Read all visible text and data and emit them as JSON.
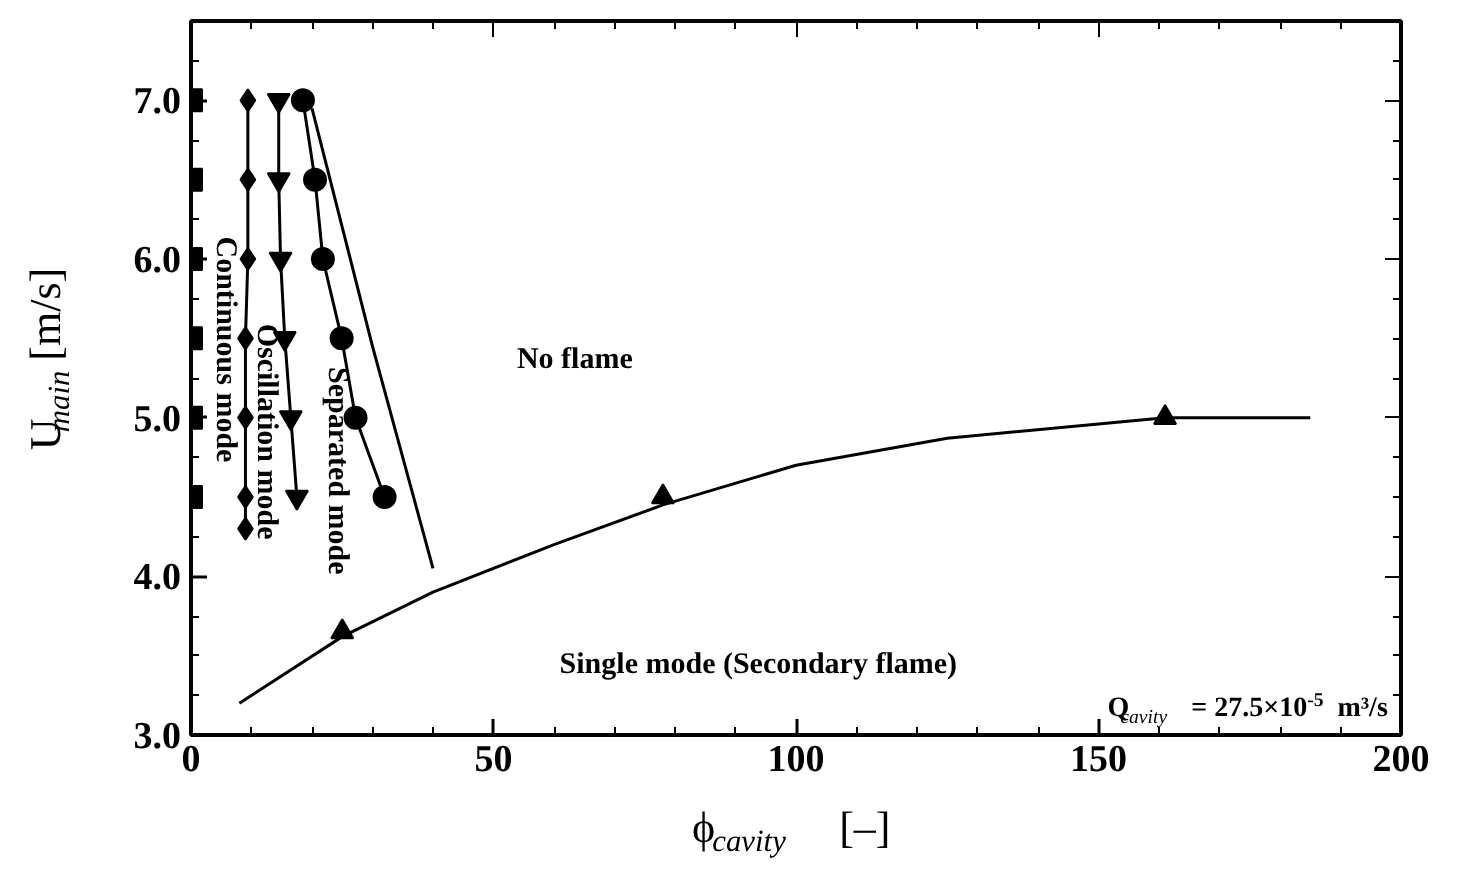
{
  "chart_data": {
    "type": "line",
    "xlabel": "ϕ$_{cavity}$  [–]",
    "ylabel": "U$_{main}$ [m/s]",
    "xlim": [
      0,
      200
    ],
    "ylim": [
      3.0,
      7.5
    ],
    "xticks": [
      0,
      50,
      100,
      150,
      200
    ],
    "yticks": [
      {
        "value": 3.0,
        "label": "3.0"
      },
      {
        "value": 4.0,
        "label": "4.0"
      },
      {
        "value": 5.0,
        "label": "5.0"
      },
      {
        "value": 6.0,
        "label": "6.0"
      },
      {
        "value": 7.0,
        "label": "7.0"
      }
    ],
    "grid": false,
    "series": [
      {
        "type": "scatter",
        "marker": "square",
        "color": "#000000",
        "x": [
          0,
          0,
          0,
          0,
          0,
          0
        ],
        "values": [
          4.5,
          5.0,
          5.5,
          6.0,
          6.5,
          7.0
        ]
      },
      {
        "marker": "diamond",
        "color": "#000000",
        "x": [
          9.0,
          9.0,
          9.0,
          9.0,
          9.4,
          9.4,
          9.4
        ],
        "values": [
          4.3,
          4.5,
          5.0,
          5.5,
          6.0,
          6.5,
          7.0
        ]
      },
      {
        "marker": "triangle_down",
        "color": "#000000",
        "x": [
          17.5,
          16.5,
          15.5,
          14.8,
          14.5,
          14.5
        ],
        "values": [
          4.5,
          5.0,
          5.5,
          6.0,
          6.5,
          7.0
        ]
      },
      {
        "marker": "circle",
        "color": "#000000",
        "x": [
          32.0,
          27.2,
          24.9,
          21.8,
          20.5,
          18.5
        ],
        "values": [
          4.5,
          5.0,
          5.5,
          6.0,
          6.5,
          7.0
        ]
      },
      {
        "marker": "none",
        "color": "#000000",
        "x": [
          20,
          25,
          30,
          35,
          40
        ],
        "values": [
          6.95,
          6.2,
          5.45,
          4.75,
          4.05
        ]
      },
      {
        "marker": "none",
        "color": "#000000",
        "x": [
          8,
          25,
          40,
          60,
          78,
          100,
          125,
          161,
          185
        ],
        "values": [
          3.2,
          3.62,
          3.9,
          4.2,
          4.45,
          4.7,
          4.87,
          5.0,
          5.0
        ]
      },
      {
        "type": "scatter",
        "marker": "triangle",
        "color": "#000000",
        "x": [
          25,
          78,
          161
        ],
        "values": [
          3.65,
          4.5,
          5.0
        ]
      }
    ],
    "annotations": [
      "Continuous mode",
      "Oscillation mode",
      "Separated mode",
      "No flame",
      "Single mode (Secondary flame)",
      "Q$_{cavity}$ = 27.5×10$^{-5}$ m³/s"
    ]
  }
}
